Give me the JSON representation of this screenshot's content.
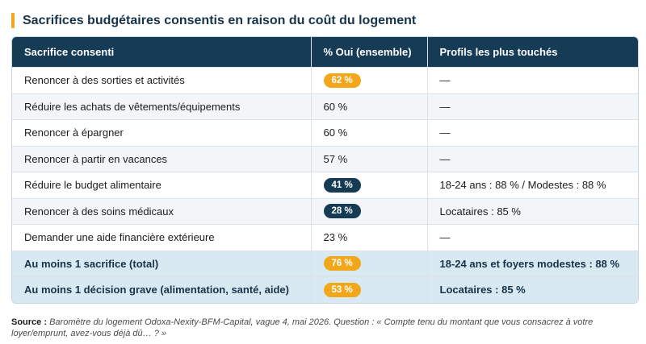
{
  "title": "Sacrifices budgétaires consentis en raison du coût du logement",
  "colors": {
    "accent_orange": "#f2a71b",
    "header_navy": "#163b54",
    "total_bg": "#d9e9f2"
  },
  "table": {
    "headers": [
      "Sacrifice consenti",
      "% Oui (ensemble)",
      "Profils les plus touchés"
    ],
    "rows": [
      {
        "sacrifice": "Renoncer à des sorties et activités",
        "pct": "62 %",
        "pill": "orange",
        "profil": "—"
      },
      {
        "sacrifice": "Réduire les achats de vêtements/équipements",
        "pct": "60 %",
        "pill": "",
        "profil": "—"
      },
      {
        "sacrifice": "Renoncer à épargner",
        "pct": "60 %",
        "pill": "",
        "profil": "—"
      },
      {
        "sacrifice": "Renoncer à partir en vacances",
        "pct": "57 %",
        "pill": "",
        "profil": "—"
      },
      {
        "sacrifice": "Réduire le budget alimentaire",
        "pct": "41 %",
        "pill": "navy",
        "profil": "18-24 ans : 88 % / Modestes : 88 %"
      },
      {
        "sacrifice": "Renoncer à des soins médicaux",
        "pct": "28 %",
        "pill": "navy",
        "profil": "Locataires : 85 %"
      },
      {
        "sacrifice": "Demander une aide financière extérieure",
        "pct": "23 %",
        "pill": "",
        "profil": "—"
      },
      {
        "sacrifice": "Au moins 1 sacrifice (total)",
        "pct": "76 %",
        "pill": "orange",
        "profil": "18-24 ans et foyers modestes : 88 %",
        "total": true
      },
      {
        "sacrifice": "Au moins 1 décision grave (alimentation, santé, aide)",
        "pct": "53 %",
        "pill": "orange",
        "profil": "Locataires : 85 %",
        "total": true
      }
    ]
  },
  "source": {
    "label": "Source :",
    "text": "Baromètre du logement Odoxa-Nexity-BFM-Capital, vague 4, mai 2026. Question : « Compte tenu du montant que vous consacrez à votre loyer/emprunt, avez-vous déjà dû… ? »"
  }
}
